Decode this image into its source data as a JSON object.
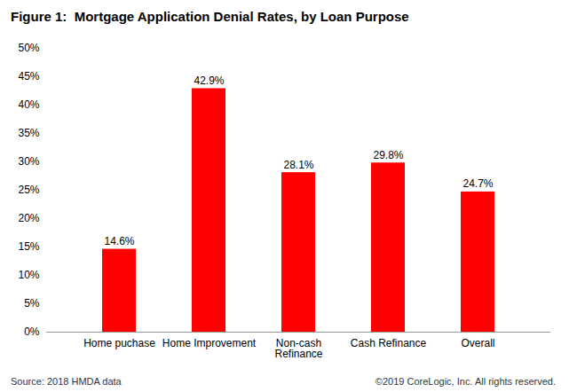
{
  "chart_data": {
    "type": "bar",
    "title": "Figure 1:  Mortgage Application Denial Rates, by Loan Purpose",
    "categories": [
      "Home puchase",
      "Home Improvement",
      "Non-cash Refinance",
      "Cash Refinance",
      "Overall"
    ],
    "values": [
      14.6,
      42.9,
      28.1,
      29.8,
      24.7
    ],
    "value_labels": [
      "14.6%",
      "42.9%",
      "28.1%",
      "29.8%",
      "24.7%"
    ],
    "color": "#ff0000",
    "ylim": [
      0,
      50
    ],
    "yticks": [
      {
        "value": 0,
        "label": "0%"
      },
      {
        "value": 5,
        "label": "5%"
      },
      {
        "value": 10,
        "label": "10%"
      },
      {
        "value": 15,
        "label": "15%"
      },
      {
        "value": 20,
        "label": "20%"
      },
      {
        "value": 25,
        "label": "25%"
      },
      {
        "value": 30,
        "label": "30%"
      },
      {
        "value": 35,
        "label": "35%"
      },
      {
        "value": 40,
        "label": "40%"
      },
      {
        "value": 45,
        "label": "45%"
      },
      {
        "value": 50,
        "label": "50%"
      }
    ],
    "data_labels": true,
    "grid": false,
    "source": "Source: 2018 HMDA data",
    "copyright": "©2019 CoreLogic, Inc. All rights reserved."
  }
}
